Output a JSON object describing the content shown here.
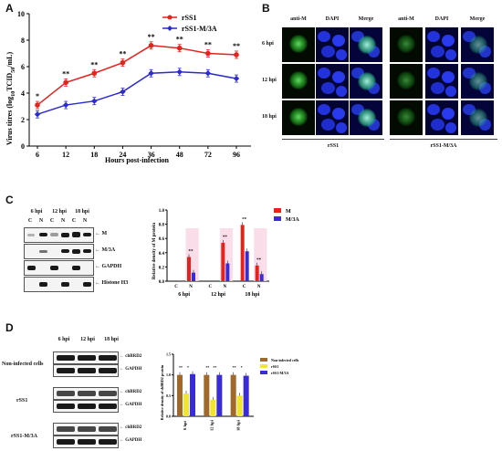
{
  "panel_labels": {
    "a": "A",
    "b": "B",
    "c": "C",
    "d": "D"
  },
  "chart_a": {
    "type": "line",
    "ylabel_main": "Virus titres (log",
    "ylabel_sub1": "10",
    "ylabel_mid": "TCID",
    "ylabel_sub2": "50",
    "ylabel_end": "/mL)",
    "xlabel": "Hours post-infection",
    "x": [
      6,
      12,
      18,
      24,
      36,
      48,
      72,
      96
    ],
    "ylim": [
      0,
      10
    ],
    "yticks": [
      0,
      2,
      4,
      6,
      8,
      10
    ],
    "significance": [
      "*",
      "**",
      "**",
      "**",
      "**",
      "**",
      "**",
      "**"
    ],
    "series": [
      {
        "name": "rSS1",
        "values": [
          3.1,
          4.8,
          5.5,
          6.3,
          7.6,
          7.4,
          7.0,
          6.9
        ],
        "color": "#e5231d"
      },
      {
        "name": "rSS1-M/3A",
        "values": [
          2.4,
          3.1,
          3.4,
          4.1,
          5.5,
          5.6,
          5.5,
          5.1
        ],
        "color": "#2b2bcf"
      }
    ]
  },
  "panel_b": {
    "col_labels": [
      "anti-M",
      "DAPI",
      "Merge",
      "anti-M",
      "DAPI",
      "Merge"
    ],
    "row_labels": [
      "6 hpi",
      "12 hpi",
      "18 hpi"
    ],
    "group_labels": [
      "rSS1",
      "rSS1-M/3A"
    ]
  },
  "panel_c": {
    "time_labels": [
      "6 hpi",
      "12 hpi",
      "18 hpi"
    ],
    "fraction_labels": [
      "C",
      "N",
      "C",
      "N",
      "C",
      "N"
    ],
    "blot_labels": [
      "M",
      "M/3A",
      "GAPDH",
      "Histone H3"
    ],
    "chart": {
      "type": "bar",
      "ylabel": "Relative density of M protein",
      "ylim": [
        0,
        1.0
      ],
      "yticks": [
        "0.0",
        "0.2",
        "0.4",
        "0.6",
        "0.8",
        "1.0"
      ],
      "groups": [
        "6 hpi",
        "12 hpi",
        "18 hpi"
      ],
      "fractions": [
        "C",
        "N"
      ],
      "series": [
        {
          "name": "M",
          "color": "#e5231d",
          "values": [
            0.0,
            0.34,
            0.0,
            0.54,
            0.79,
            0.22
          ]
        },
        {
          "name": "M/3A",
          "color": "#3a2bd8",
          "values": [
            0.0,
            0.12,
            0.0,
            0.25,
            0.42,
            0.1
          ]
        }
      ],
      "sig": [
        "**",
        "**",
        "**",
        "**"
      ]
    }
  },
  "panel_d": {
    "time_labels": [
      "6 hpi",
      "12 hpi",
      "18 hpi"
    ],
    "row_groups": [
      "Non-infected cells",
      "rSS1",
      "rSS1-M/3A"
    ],
    "blot_labels": [
      "chBRD2",
      "GAPDH"
    ],
    "chart": {
      "type": "bar",
      "ylabel": "Relative density of chBRD2 protein",
      "ylim": [
        0,
        1.5
      ],
      "groups": [
        "6 hpi",
        "12 hpi",
        "18 hpi"
      ],
      "series": [
        {
          "name": "Non-infected cells",
          "color": "#a0692b",
          "values": [
            1.0,
            1.0,
            1.0
          ]
        },
        {
          "name": "rSS1",
          "color": "#f1e62b",
          "values": [
            0.55,
            0.4,
            0.5
          ]
        },
        {
          "name": "rSS1-M/3A",
          "color": "#3a2bd8",
          "values": [
            1.02,
            1.0,
            0.98
          ]
        }
      ],
      "sig": [
        "**",
        "*",
        "**",
        "**",
        "**",
        "*"
      ]
    }
  }
}
